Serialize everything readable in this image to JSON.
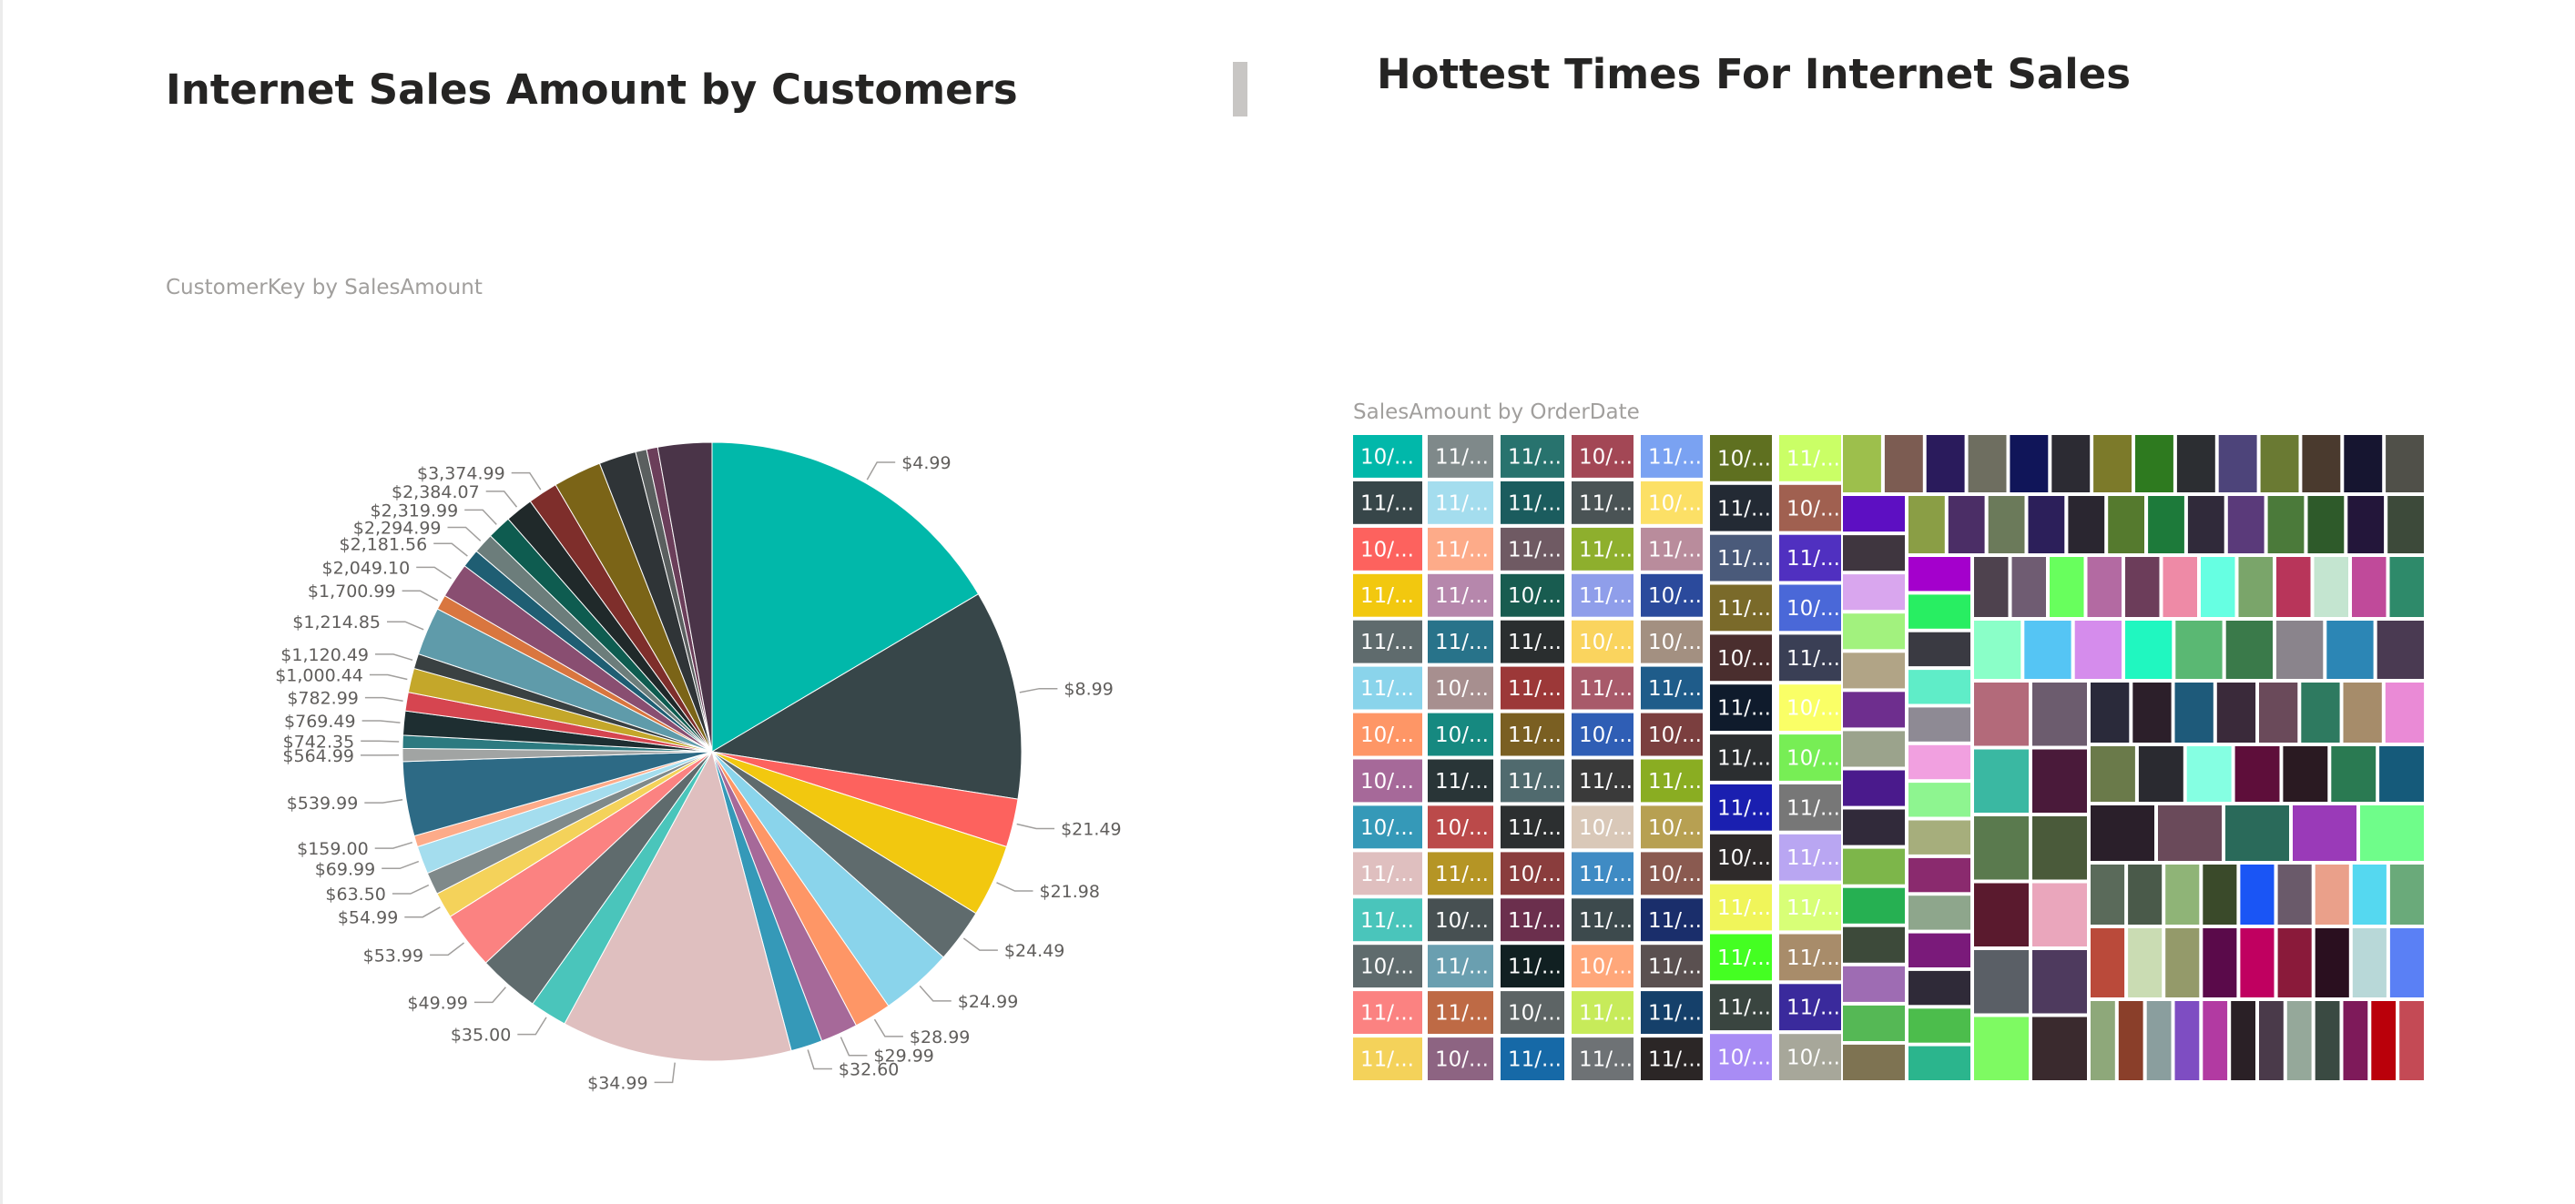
{
  "left_visual": {
    "title": "Internet Sales Amount by Customers",
    "subtitle": "CustomerKey by SalesAmount"
  },
  "right_visual": {
    "title": "Hottest Times For Internet Sales",
    "subtitle": "SalesAmount by OrderDate"
  },
  "chart_data": [
    {
      "type": "pie",
      "title": "CustomerKey by SalesAmount",
      "slices": [
        {
          "label": "$4.99",
          "value": 17.0,
          "color": "#01B8AA"
        },
        {
          "label": "$8.99",
          "value": 11.3,
          "color": "#374649"
        },
        {
          "label": "$21.49",
          "value": 2.6,
          "color": "#FD625E"
        },
        {
          "label": "$21.98",
          "value": 3.9,
          "color": "#F2C80F"
        },
        {
          "label": "$24.49",
          "value": 2.9,
          "color": "#5F6B6D"
        },
        {
          "label": "$24.99",
          "value": 3.9,
          "color": "#8AD4EB"
        },
        {
          "label": "$28.99",
          "value": 2.0,
          "color": "#FE9666"
        },
        {
          "label": "$29.99",
          "value": 2.0,
          "color": "#A66999"
        },
        {
          "label": "$32.60",
          "value": 1.7,
          "color": "#3599B8"
        },
        {
          "label": "$34.99",
          "value": 12.4,
          "color": "#DFBFBF"
        },
        {
          "label": "$35.00",
          "value": 2.0,
          "color": "#4AC5BB"
        },
        {
          "label": "$49.99",
          "value": 3.3,
          "color": "#5F6B6D"
        },
        {
          "label": "$53.99",
          "value": 3.1,
          "color": "#FB8281"
        },
        {
          "label": "$54.99",
          "value": 1.4,
          "color": "#F4D25A"
        },
        {
          "label": "$63.50",
          "value": 1.2,
          "color": "#7F898A"
        },
        {
          "label": "$69.99",
          "value": 1.5,
          "color": "#A4DDEE"
        },
        {
          "label": "$159.00",
          "value": 0.6,
          "color": "#FDAB89"
        },
        {
          "label": "$539.99",
          "value": 4.0,
          "color": "#2D6A85"
        },
        {
          "label": "$564.99",
          "value": 0.7,
          "color": "#A1A4A3"
        },
        {
          "label": "$742.35",
          "value": 0.7,
          "color": "#2C7A80"
        },
        {
          "label": "$769.49",
          "value": 1.3,
          "color": "#1E2E31"
        },
        {
          "label": "$782.99",
          "value": 1.0,
          "color": "#D64550"
        },
        {
          "label": "$1,000.44",
          "value": 1.3,
          "color": "#C4A72A"
        },
        {
          "label": "$1,120.49",
          "value": 0.8,
          "color": "#3A4142"
        },
        {
          "label": "$1,214.85",
          "value": 2.6,
          "color": "#5F9BAA"
        },
        {
          "label": "$1,700.99",
          "value": 0.8,
          "color": "#D9763F"
        },
        {
          "label": "$2,049.10",
          "value": 1.9,
          "color": "#894E71"
        },
        {
          "label": "$2,181.56",
          "value": 1.0,
          "color": "#1F5E73"
        },
        {
          "label": "$2,294.99",
          "value": 1.1,
          "color": "#6C7D7B"
        },
        {
          "label": "$2,319.99",
          "value": 1.3,
          "color": "#0E5C50"
        },
        {
          "label": "$2,384.07",
          "value": 1.5,
          "color": "#20292A"
        },
        {
          "label": "$3,374.99",
          "value": 1.6,
          "color": "#7E2E2B"
        },
        {
          "label": "",
          "value": 2.6,
          "color": "#7B6417"
        },
        {
          "label": "",
          "value": 2.0,
          "color": "#2F3437"
        },
        {
          "label": "",
          "value": 0.6,
          "color": "#5A5F5F"
        },
        {
          "label": "",
          "value": 0.6,
          "color": "#6B3E5A"
        },
        {
          "label": "",
          "value": 2.9,
          "color": "#4A3448"
        }
      ]
    },
    {
      "type": "treemap",
      "title": "SalesAmount by OrderDate",
      "labeled_tiles": [
        {
          "label": "10/...",
          "color": "#01B8AA"
        },
        {
          "label": "11/...",
          "color": "#374649"
        },
        {
          "label": "10/...",
          "color": "#FD625E"
        },
        {
          "label": "11/...",
          "color": "#F2C80F"
        },
        {
          "label": "11/...",
          "color": "#5F6B6D"
        },
        {
          "label": "11/...",
          "color": "#8AD4EB"
        },
        {
          "label": "10/...",
          "color": "#FE9666"
        },
        {
          "label": "10/...",
          "color": "#A66999"
        },
        {
          "label": "10/...",
          "color": "#3599B8"
        },
        {
          "label": "11/...",
          "color": "#DFBFBF"
        },
        {
          "label": "11/...",
          "color": "#4AC5BB"
        },
        {
          "label": "10/...",
          "color": "#5F6B6D"
        },
        {
          "label": "11/...",
          "color": "#FB8281"
        },
        {
          "label": "11/...",
          "color": "#F4D25A"
        },
        {
          "label": "11/...",
          "color": "#7F898A"
        },
        {
          "label": "11/...",
          "color": "#A4DDEE"
        },
        {
          "label": "11/...",
          "color": "#FDAB89"
        },
        {
          "label": "11/...",
          "color": "#B687AC"
        },
        {
          "label": "11/...",
          "color": "#28738A"
        },
        {
          "label": "10/...",
          "color": "#A78F8F"
        },
        {
          "label": "10/...",
          "color": "#168980"
        },
        {
          "label": "11/...",
          "color": "#293537"
        },
        {
          "label": "10/...",
          "color": "#BB4A4A"
        },
        {
          "label": "11/...",
          "color": "#B59525"
        },
        {
          "label": "10/...",
          "color": "#475052"
        },
        {
          "label": "11/...",
          "color": "#6A9FB0"
        },
        {
          "label": "11/...",
          "color": "#BE6A45"
        },
        {
          "label": "10/...",
          "color": "#8D6482"
        },
        {
          "label": "11/...",
          "color": "#28736E"
        },
        {
          "label": "11/...",
          "color": "#1B5C5E"
        },
        {
          "label": "11/...",
          "color": "#6F5A63"
        },
        {
          "label": "10/...",
          "color": "#185C50"
        },
        {
          "label": "11/...",
          "color": "#2A2E2F"
        },
        {
          "label": "11/...",
          "color": "#9C3838"
        },
        {
          "label": "11/...",
          "color": "#7A5F22"
        },
        {
          "label": "11/...",
          "color": "#506A6E"
        },
        {
          "label": "11/...",
          "color": "#2C2F30"
        },
        {
          "label": "10/...",
          "color": "#8A3D3D"
        },
        {
          "label": "11/...",
          "color": "#6B2F4D"
        },
        {
          "label": "11/...",
          "color": "#112022"
        },
        {
          "label": "10/...",
          "color": "#5D6465"
        },
        {
          "label": "11/...",
          "color": "#1669A7"
        },
        {
          "label": "10/...",
          "color": "#A34755"
        },
        {
          "label": "11/...",
          "color": "#4A5355"
        },
        {
          "label": "11/...",
          "color": "#8EAF2D"
        },
        {
          "label": "11/...",
          "color": "#8F9EEA"
        },
        {
          "label": "10/...",
          "color": "#FAD45E"
        },
        {
          "label": "11/...",
          "color": "#A85A6A"
        },
        {
          "label": "10/...",
          "color": "#2F5EB5"
        },
        {
          "label": "11/...",
          "color": "#3A3A3A"
        },
        {
          "label": "10/...",
          "color": "#D9C8B8"
        },
        {
          "label": "11/...",
          "color": "#3F8BC4"
        },
        {
          "label": "11/...",
          "color": "#3D4A4D"
        },
        {
          "label": "10/...",
          "color": "#FFA77A"
        },
        {
          "label": "11/...",
          "color": "#C7EB5A"
        },
        {
          "label": "11/...",
          "color": "#6E7275"
        },
        {
          "label": "11/...",
          "color": "#7AA2F2"
        },
        {
          "label": "10/...",
          "color": "#FCE066"
        },
        {
          "label": "11/...",
          "color": "#B98C9C"
        },
        {
          "label": "10/...",
          "color": "#2B4A9C"
        },
        {
          "label": "10/...",
          "color": "#A39081"
        },
        {
          "label": "11/...",
          "color": "#1F5C8A"
        },
        {
          "label": "10/...",
          "color": "#7B3F3F"
        },
        {
          "label": "11/...",
          "color": "#8AAD22"
        },
        {
          "label": "10/...",
          "color": "#B7A052"
        },
        {
          "label": "10/...",
          "color": "#8A5A50"
        },
        {
          "label": "11/...",
          "color": "#1A2E6B"
        },
        {
          "label": "11/...",
          "color": "#5A5050"
        },
        {
          "label": "11/...",
          "color": "#15406A"
        },
        {
          "label": "11/...",
          "color": "#2B2626"
        },
        {
          "label": "10/...",
          "color": "#5F7020"
        },
        {
          "label": "11/...",
          "color": "#232A34"
        },
        {
          "label": "11/...",
          "color": "#4A5A7A"
        },
        {
          "label": "11/...",
          "color": "#7A6A2A"
        },
        {
          "label": "10/...",
          "color": "#4A2E2E"
        },
        {
          "label": "11/...",
          "color": "#0F1B2C"
        },
        {
          "label": "11/...",
          "color": "#2B2E30"
        },
        {
          "label": "11/...",
          "color": "#1A1FB0"
        },
        {
          "label": "10/...",
          "color": "#2E2A2A"
        },
        {
          "label": "11/...",
          "color": "#F0F55A"
        },
        {
          "label": "11/...",
          "color": "#44FF22"
        },
        {
          "label": "11/...",
          "color": "#3A4540"
        },
        {
          "label": "10/...",
          "color": "#A88CF5"
        },
        {
          "label": "11/...",
          "color": "#CAFF66"
        },
        {
          "label": "10/...",
          "color": "#A06050"
        },
        {
          "label": "11/...",
          "color": "#5030C0"
        },
        {
          "label": "10/...",
          "color": "#4A68D8"
        },
        {
          "label": "11/...",
          "color": "#3A3F55"
        },
        {
          "label": "10/...",
          "color": "#FAFF66"
        },
        {
          "label": "10/...",
          "color": "#77EE55"
        },
        {
          "label": "11/...",
          "color": "#777777"
        },
        {
          "label": "11/...",
          "color": "#B9A6F2"
        },
        {
          "label": "11/...",
          "color": "#D8FF77"
        },
        {
          "label": "11/...",
          "color": "#A88C6A"
        },
        {
          "label": "11/...",
          "color": "#3A2A9C"
        },
        {
          "label": "10/...",
          "color": "#A7A79A"
        },
        {
          "label": "10/...",
          "color": "#20206A"
        },
        {
          "label": "10/...",
          "color": "#B5A542"
        },
        {
          "label": "11/...",
          "color": "#55AA33"
        }
      ],
      "unlabeled_tile_colors": [
        "#9DBF4C",
        "#7C5C52",
        "#2A1B5C",
        "#6E6E60",
        "#101559",
        "#2C2B33",
        "#7C7A2A",
        "#2E7A1F",
        "#2C2E32",
        "#4D447A",
        "#6A7A33",
        "#4A3A2E",
        "#161530",
        "#505049",
        "#5D0FC2",
        "#3F363F",
        "#D9A6EE",
        "#A2F27E",
        "#B1A486",
        "#6E2E8E",
        "#9BA38C",
        "#4A1A8C",
        "#312A3A",
        "#7DB64A",
        "#26B052",
        "#3D4A3A",
        "#9E6CB3",
        "#55B855",
        "#7E7352",
        "#8A9E45",
        "#4B2E66",
        "#6B7A5A",
        "#2C1F5A",
        "#2A2630",
        "#557A2E",
        "#1D7A3A",
        "#302A3A",
        "#5A3A7A",
        "#4B7A3A",
        "#2E5A2A",
        "#23163A",
        "#3D4A3A",
        "#A400CC",
        "#28EE62",
        "#3A3A42",
        "#5FEDC8",
        "#8E8A94",
        "#F1A0E0",
        "#8EF590",
        "#A6AE7C",
        "#8A2A6E",
        "#8EA68C",
        "#7A1A7A",
        "#2F2A38",
        "#4CBD4C",
        "#2BB58D",
        "#4E424E",
        "#6F5C72",
        "#68FF5D",
        "#B36AA2",
        "#6C3D5A",
        "#EE8AA6",
        "#66FFE2",
        "#7AA56A",
        "#B8355A",
        "#C4E5D0",
        "#C04A9A",
        "#2E8A6A",
        "#8AFFC8",
        "#55C5F4",
        "#D58CEC",
        "#20F7C0",
        "#5AB873",
        "#3A7A4A",
        "#8A848C",
        "#2C86B5",
        "#4A3A52",
        "#B36A7A",
        "#3AB8A2",
        "#5A7A4E",
        "#5A1A2E",
        "#5A5F66",
        "#7EFA62",
        "#6C5C6E",
        "#4A1A3A",
        "#4A5A3A",
        "#EAA6BC",
        "#4E3A5E",
        "#3A2A2E",
        "#2A2A3A",
        "#2C1F2A",
        "#1E5A7A",
        "#3A2A3A",
        "#6A4A5A",
        "#2E7A60",
        "#A68C6A",
        "#EA8AD6",
        "#6A7A4A",
        "#2A2A30",
        "#85FFE2",
        "#5E0E3A",
        "#2A1A22",
        "#2A7A52",
        "#155A7A",
        "#2A1F2A",
        "#6A4A5A",
        "#2A6A5A",
        "#9A3AB8",
        "#6FFD8A",
        "#5A6A5A",
        "#4A5A4A",
        "#8FB477",
        "#3A4A2A",
        "#1A55F5",
        "#6A5A6A",
        "#EAA08A",
        "#55D8F0",
        "#6AAA7A",
        "#BA4A3A",
        "#CADCB3",
        "#949A6A",
        "#5A0A4A",
        "#C00060",
        "#8A1A3A",
        "#2A0F1F",
        "#B8D8D8",
        "#5A80F5",
        "#8EA87A",
        "#8A3F2A",
        "#8A9E9E",
        "#7E4DC2",
        "#B23AA2",
        "#2A2026",
        "#4A3A4A",
        "#95A89A",
        "#3A4A42",
        "#7E1A5A",
        "#BA000A",
        "#C44A55",
        "#8A7A7A",
        "#8A1A2A",
        "#44B5C5",
        "#65637A",
        "#BFE0C2",
        "#2E7A33",
        "#55FFAA",
        "#2C2A3A",
        "#3A2A2E",
        "#2E7A6A",
        "#11A5EE",
        "#4A3A3A",
        "#6A5A6A",
        "#EAB5A2",
        "#2A2A2A",
        "#B8FA84",
        "#BC5ADA",
        "#66F58A",
        "#6A5A6A",
        "#E0E0C4",
        "#45434F",
        "#7E6AB8",
        "#8A8694",
        "#88FF8A",
        "#2E2A3A",
        "#6A5A6A",
        "#4AC58A",
        "#66FFFF",
        "#2A2A2F",
        "#77FCFA",
        "#3A2A2A",
        "#88E0FA",
        "#2E2A2A",
        "#2544B5"
      ]
    }
  ]
}
